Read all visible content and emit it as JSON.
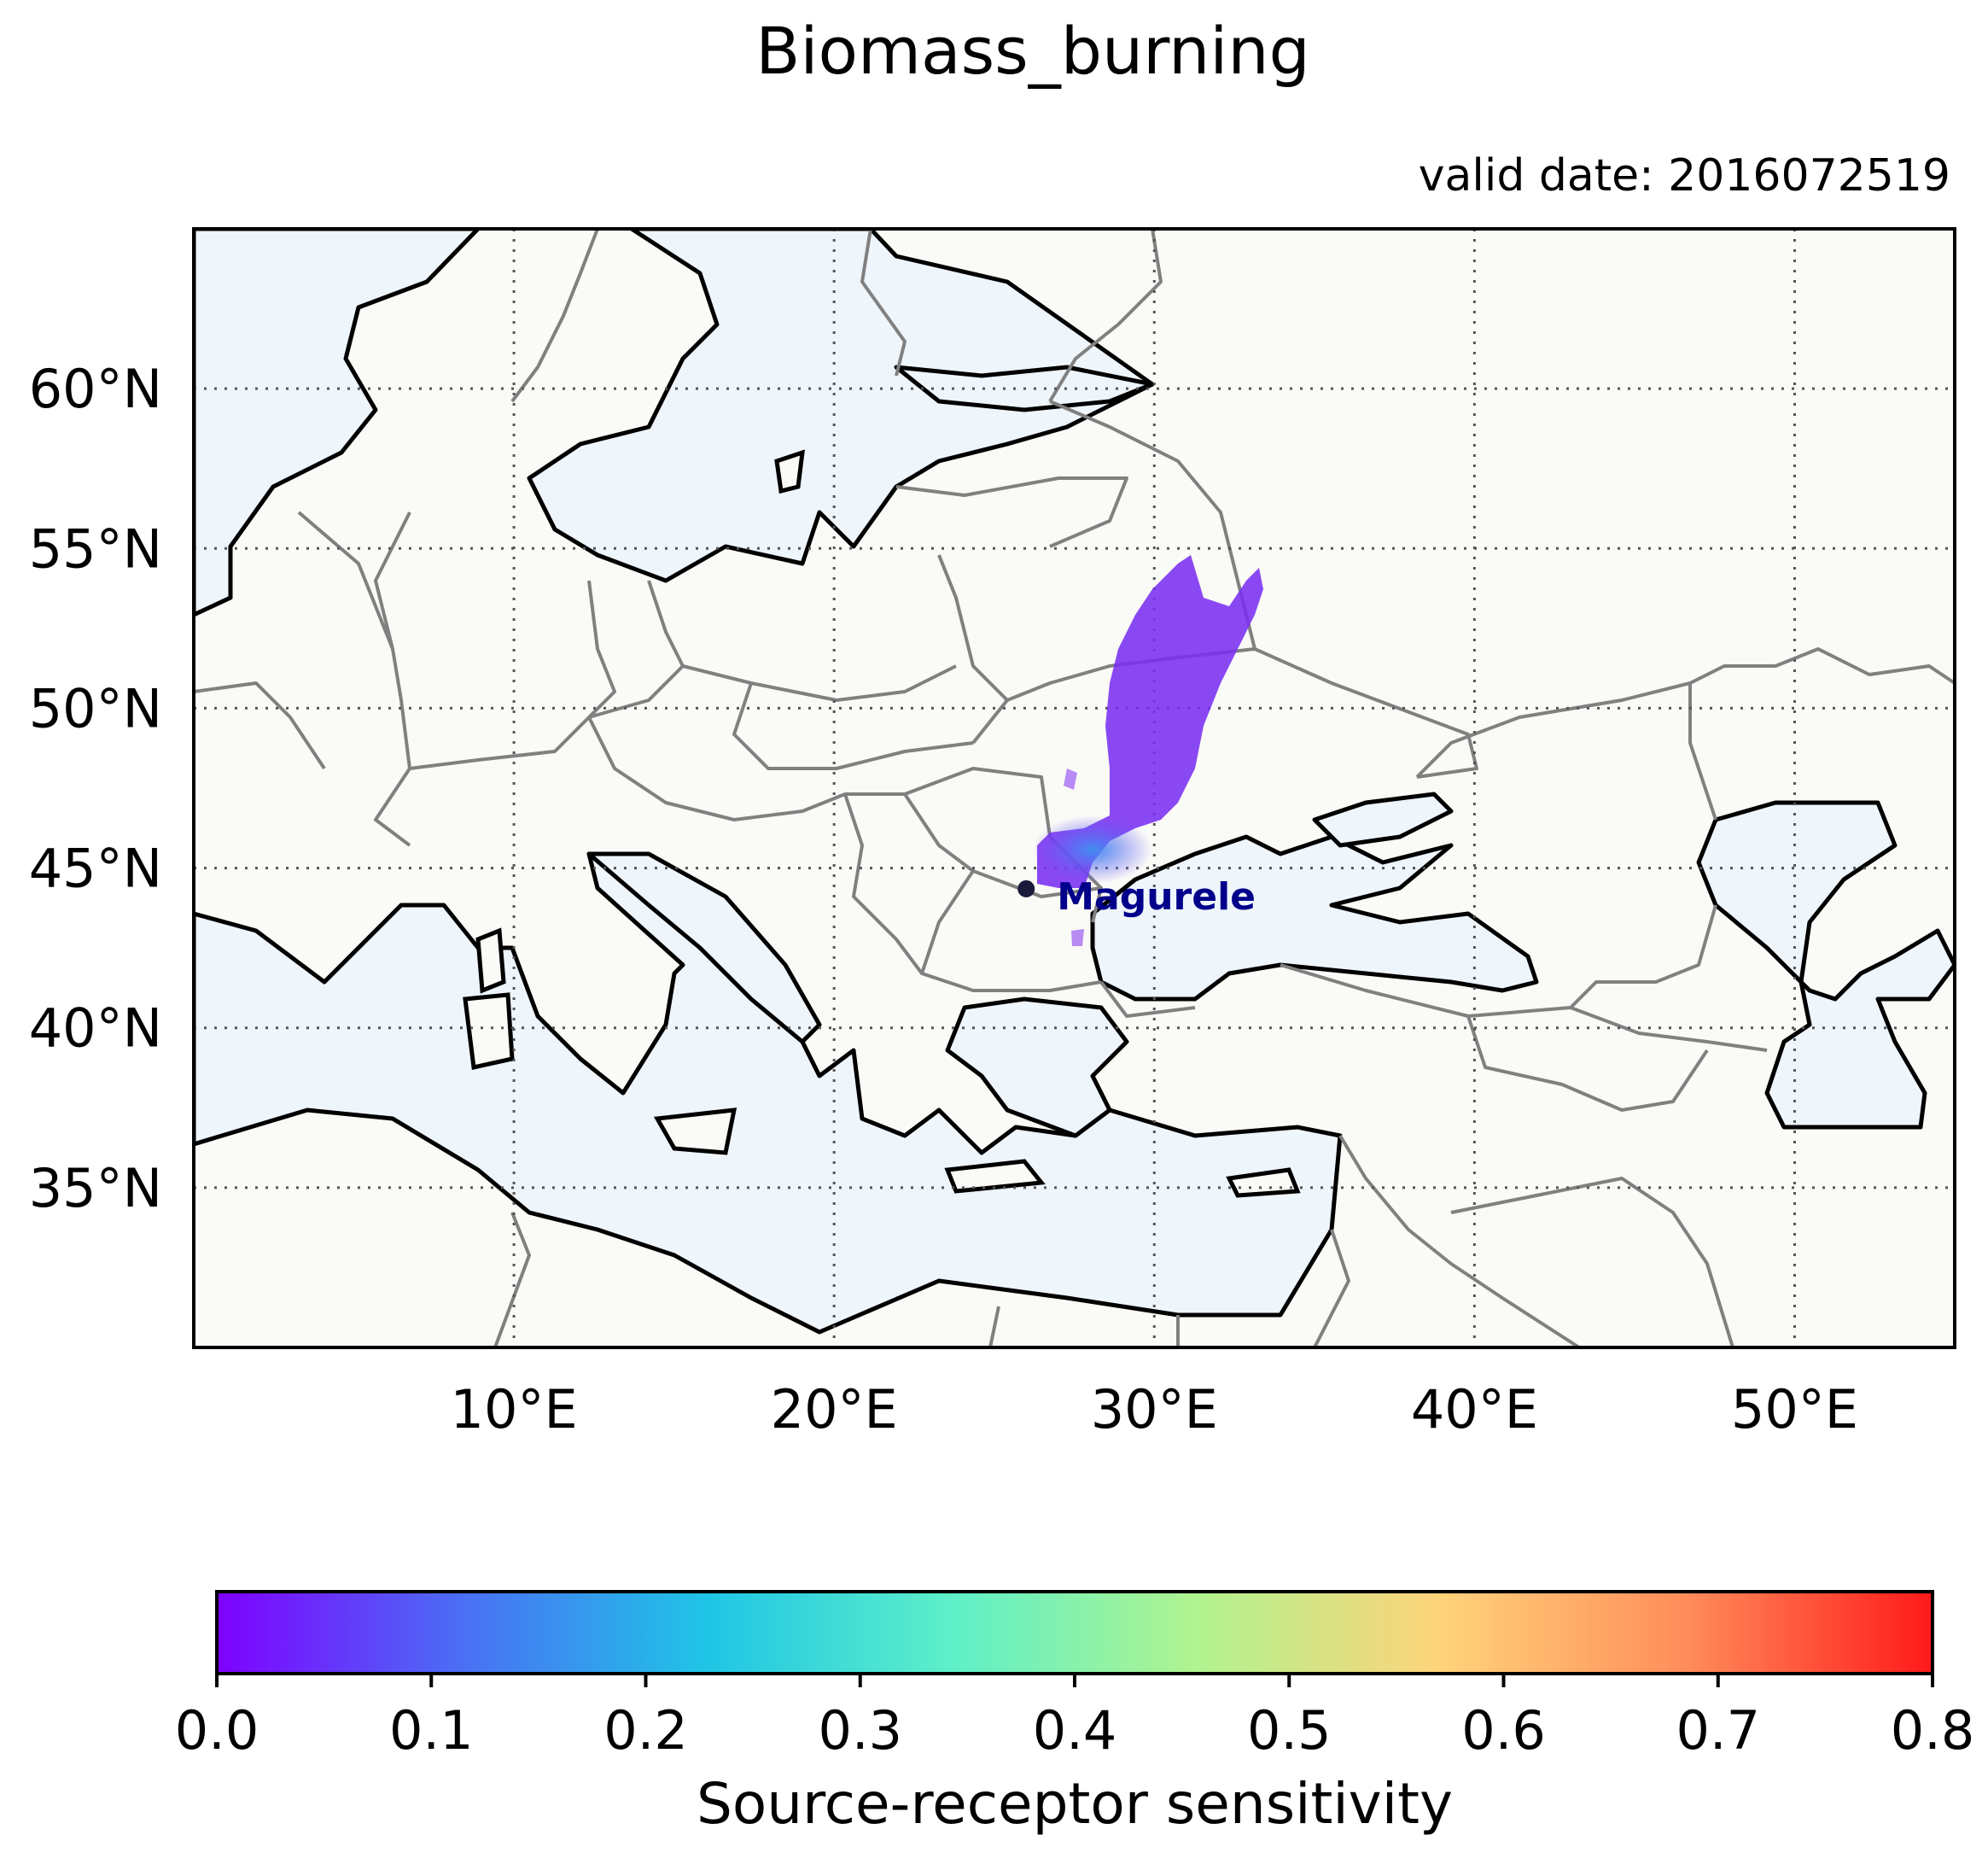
{
  "title": "Biomass_burning",
  "valid_date": "valid date: 2016072519",
  "map": {
    "lon_range": [
      0,
      55
    ],
    "lat_range": [
      30,
      65
    ],
    "lat_ticks": [
      {
        "value": 35,
        "label": "35°N"
      },
      {
        "value": 40,
        "label": "40°N"
      },
      {
        "value": 45,
        "label": "45°N"
      },
      {
        "value": 50,
        "label": "50°N"
      },
      {
        "value": 55,
        "label": "55°N"
      },
      {
        "value": 60,
        "label": "60°N"
      }
    ],
    "lon_ticks": [
      {
        "value": 10,
        "label": "10°E"
      },
      {
        "value": 20,
        "label": "20°E"
      },
      {
        "value": 30,
        "label": "30°E"
      },
      {
        "value": 40,
        "label": "40°E"
      },
      {
        "value": 50,
        "label": "50°E"
      }
    ],
    "gridlines": "dotted",
    "land_color": "#fafaf7",
    "sea_color": "#eef5fb",
    "coast_color": "#000000",
    "border_color": "#808080",
    "station": {
      "name": "Magurele",
      "lon": 26.0,
      "lat": 44.35,
      "color": "#00008b"
    },
    "plume_color": "#7a2ff2",
    "plume_core_color": "#4a78ee"
  },
  "colorbar": {
    "label": "Source-receptor sensitivity",
    "min": 0.0,
    "max": 0.8,
    "ticks": [
      "0.0",
      "0.1",
      "0.2",
      "0.3",
      "0.4",
      "0.5",
      "0.6",
      "0.7",
      "0.8"
    ],
    "colormap": "rainbow",
    "stops": [
      "#7f00ff",
      "#4a6ff5",
      "#1fc5e6",
      "#5ef0c8",
      "#b0f38f",
      "#ffd37a",
      "#ff8c5a",
      "#ff1a1a"
    ]
  }
}
